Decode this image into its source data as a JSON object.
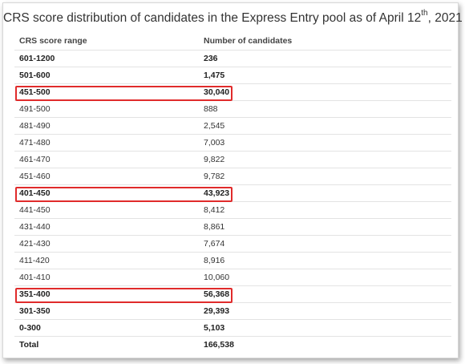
{
  "title": {
    "before": "CRS score distribution of candidates in the Express Entry pool as of April 12",
    "sup": "th",
    "after": ", 2021"
  },
  "table": {
    "headers": [
      "CRS score range",
      "Number of candidates"
    ],
    "rows": [
      {
        "range": "601-1200",
        "count": "236",
        "bold": true,
        "highlight": false
      },
      {
        "range": "501-600",
        "count": "1,475",
        "bold": true,
        "highlight": false
      },
      {
        "range": "451-500",
        "count": "30,040",
        "bold": true,
        "highlight": true
      },
      {
        "range": "491-500",
        "count": "888",
        "bold": false,
        "highlight": false
      },
      {
        "range": "481-490",
        "count": "2,545",
        "bold": false,
        "highlight": false
      },
      {
        "range": "471-480",
        "count": "7,003",
        "bold": false,
        "highlight": false
      },
      {
        "range": "461-470",
        "count": "9,822",
        "bold": false,
        "highlight": false
      },
      {
        "range": "451-460",
        "count": "9,782",
        "bold": false,
        "highlight": false
      },
      {
        "range": "401-450",
        "count": "43,923",
        "bold": true,
        "highlight": true
      },
      {
        "range": "441-450",
        "count": "8,412",
        "bold": false,
        "highlight": false
      },
      {
        "range": "431-440",
        "count": "8,861",
        "bold": false,
        "highlight": false
      },
      {
        "range": "421-430",
        "count": "7,674",
        "bold": false,
        "highlight": false
      },
      {
        "range": "411-420",
        "count": "8,916",
        "bold": false,
        "highlight": false
      },
      {
        "range": "401-410",
        "count": "10,060",
        "bold": false,
        "highlight": false
      },
      {
        "range": "351-400",
        "count": "56,368",
        "bold": true,
        "highlight": true
      },
      {
        "range": "301-350",
        "count": "29,393",
        "bold": true,
        "highlight": false
      },
      {
        "range": "0-300",
        "count": "5,103",
        "bold": true,
        "highlight": false
      },
      {
        "range": "Total",
        "count": "166,538",
        "bold": true,
        "highlight": false
      }
    ]
  },
  "colors": {
    "highlight_border": "#e02b2b",
    "row_divider": "#e3e3e3",
    "text": "#333333"
  }
}
